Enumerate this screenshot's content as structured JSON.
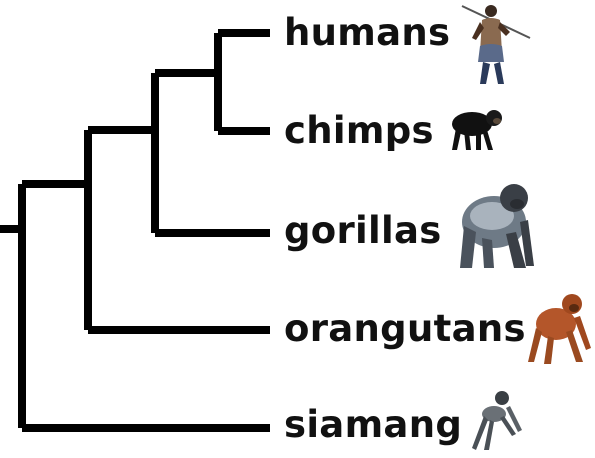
{
  "diagram": {
    "type": "phylogenetic-tree",
    "line_color": "#000000",
    "taxa": [
      {
        "id": "humans",
        "label": "humans",
        "icon": "human-figure-icon"
      },
      {
        "id": "chimps",
        "label": "chimps",
        "icon": "chimpanzee-icon"
      },
      {
        "id": "gorillas",
        "label": "gorillas",
        "icon": "gorilla-icon"
      },
      {
        "id": "orangutans",
        "label": "orangutans",
        "icon": "orangutan-icon"
      },
      {
        "id": "siamang",
        "label": "siamang",
        "icon": "siamang-icon"
      }
    ],
    "topology": "((((humans,chimps),gorillas),orangutans),siamang)"
  }
}
